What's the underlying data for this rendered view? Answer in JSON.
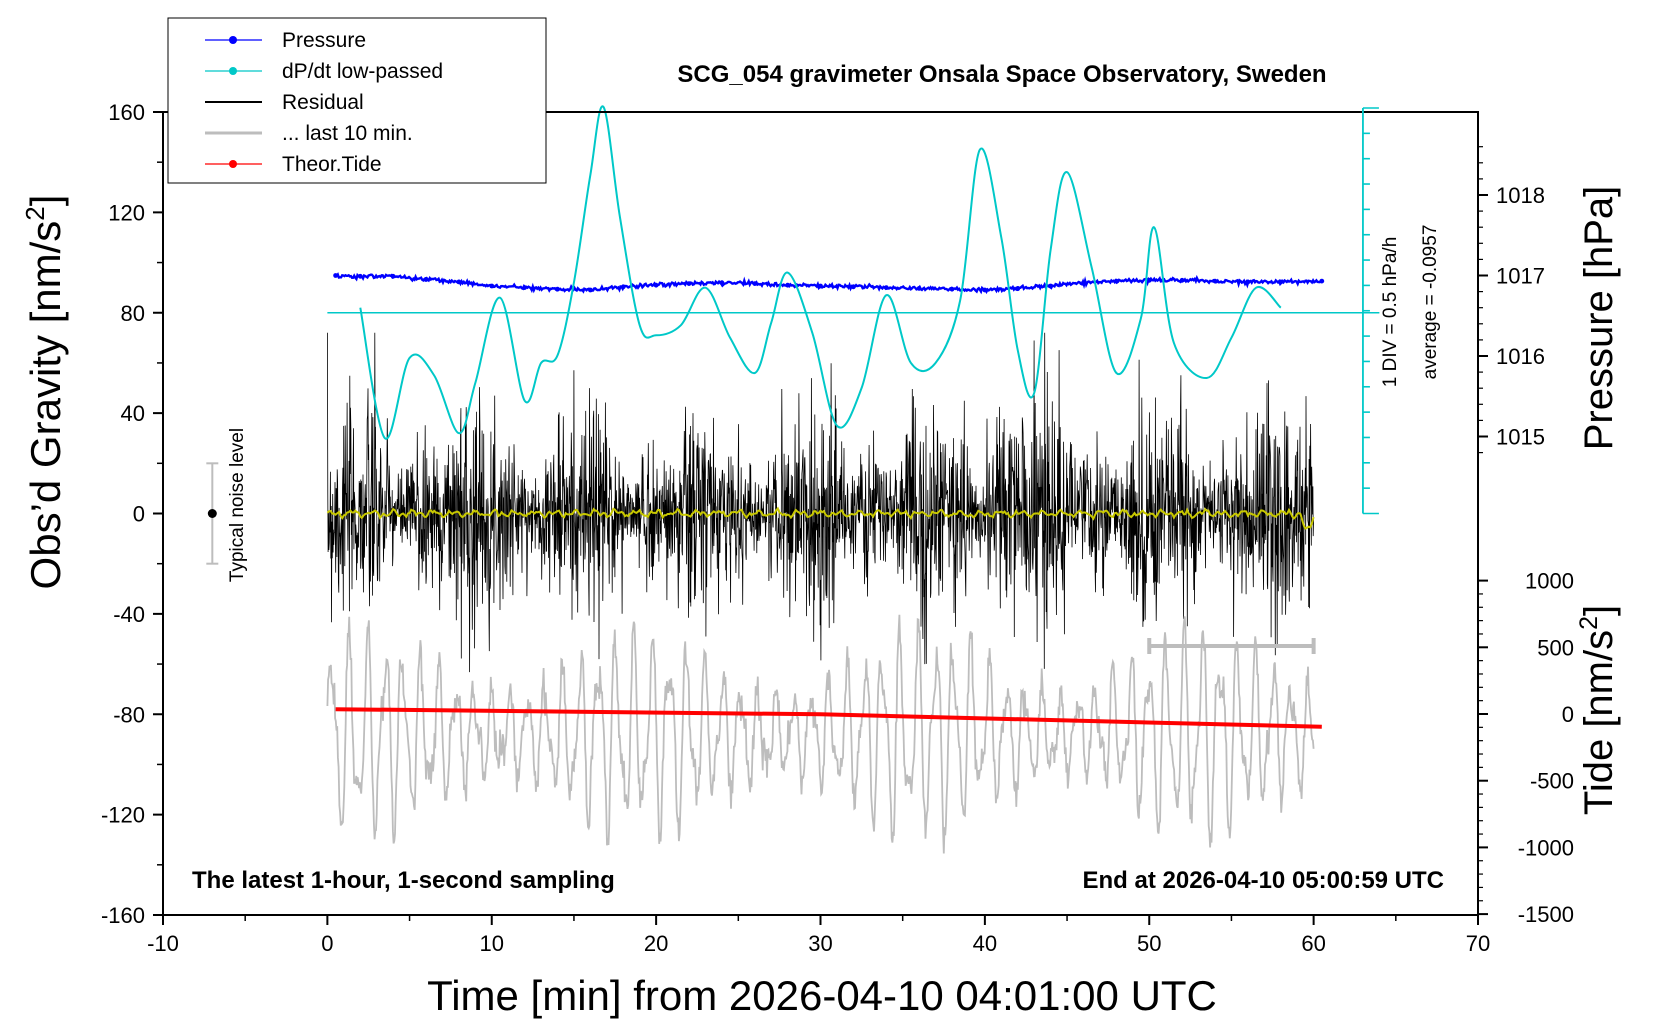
{
  "chart_data": {
    "type": "line",
    "title": "SCG_054 gravimeter Onsala Space Observatory, Sweden",
    "xlabel": "Time [min] from 2026-04-10 04:01:00 UTC",
    "ylabel_left": "Obs’d Gravity [nm/s",
    "ylabel_left_sup": "2",
    "ylabel_left_close": "]",
    "ylabel_right_pressure": "Pressure [hPa]",
    "ylabel_right_tide": "Tide [nm/s",
    "ylabel_right_tide_sup": "2",
    "ylabel_right_tide_close": "]",
    "xlim": [
      -10,
      70
    ],
    "ylim": [
      -160,
      160
    ],
    "x_ticks": [
      "-10",
      "0",
      "10",
      "20",
      "30",
      "40",
      "50",
      "60",
      "70"
    ],
    "y_ticks_left": [
      "160",
      "120",
      "80",
      "40",
      "0",
      "-40",
      "-80",
      "-120",
      "-160"
    ],
    "pressure_ticks": [
      "1018",
      "1017",
      "1016",
      "1015"
    ],
    "tide_ticks": [
      "1000",
      "500",
      "0",
      "-500",
      "-1000",
      "-1500"
    ],
    "scale_bar_label_1": "1 DIV = 0.5 hPa/h",
    "scale_bar_label_2": "average = -0.0957",
    "noise_label": "Typical noise level",
    "footer_left": "The latest 1-hour, 1-second sampling",
    "footer_right": "End at 2026-04-10 05:00:59 UTC",
    "legend": [
      {
        "label": "Pressure",
        "color": "#0000ff",
        "marker": true
      },
      {
        "label": "dP/dt low-passed",
        "color": "#00c8c8",
        "marker": true
      },
      {
        "label": "Residual",
        "color": "#000000",
        "marker": false
      },
      {
        "label": "... last 10 min.",
        "color": "#bdbdbd",
        "marker": false
      },
      {
        "label": "Theor.Tide",
        "color": "#ff0000",
        "marker": true
      }
    ],
    "series": [
      {
        "name": "Pressure",
        "color": "#0000ff",
        "unit": "hPa",
        "x": [
          0.5,
          2,
          4,
          6,
          8,
          10,
          12,
          14,
          16,
          18,
          20,
          22,
          24,
          26,
          28,
          30,
          32,
          34,
          36,
          38,
          40,
          42,
          44,
          46,
          48,
          50,
          52,
          54,
          56,
          58,
          60.5
        ],
        "values": [
          1017.0,
          1016.99,
          1016.99,
          1016.95,
          1016.92,
          1016.87,
          1016.85,
          1016.83,
          1016.82,
          1016.86,
          1016.88,
          1016.9,
          1016.91,
          1016.9,
          1016.88,
          1016.87,
          1016.86,
          1016.85,
          1016.84,
          1016.83,
          1016.82,
          1016.84,
          1016.87,
          1016.91,
          1016.93,
          1016.94,
          1016.94,
          1016.93,
          1016.92,
          1016.92,
          1016.93
        ]
      },
      {
        "name": "dP/dt low-passed",
        "color": "#00c8c8",
        "unit": "nm/s2 plot units",
        "baseline": 80,
        "x": [
          2,
          3.5,
          5,
          6.5,
          8,
          9,
          10.5,
          12,
          13,
          14,
          15,
          16,
          16.8,
          17.8,
          19,
          20,
          21.5,
          23,
          24.5,
          26,
          27,
          28,
          29.5,
          31,
          32.5,
          34,
          35.5,
          37,
          38.5,
          39.7,
          41,
          42,
          43,
          44,
          45,
          46.5,
          48,
          49.5,
          50.3,
          51.5,
          53.5,
          55,
          56.5,
          58
        ],
        "values": [
          82,
          30,
          62,
          55,
          32,
          52,
          86,
          45,
          60,
          63,
          92,
          135,
          162,
          118,
          75,
          71,
          75,
          90,
          70,
          56,
          76,
          96,
          72,
          35,
          50,
          87,
          60,
          60,
          85,
          145,
          110,
          65,
          48,
          105,
          136,
          98,
          56,
          78,
          114,
          68,
          54,
          70,
          90,
          82
        ]
      },
      {
        "name": "Theor.Tide",
        "color": "#ff0000",
        "unit": "nm/s2",
        "x": [
          0.5,
          30,
          60.5
        ],
        "values": [
          2,
          0,
          -5
        ]
      }
    ],
    "noise_bar": {
      "x": -7,
      "center": 0,
      "half_range": 20
    }
  }
}
